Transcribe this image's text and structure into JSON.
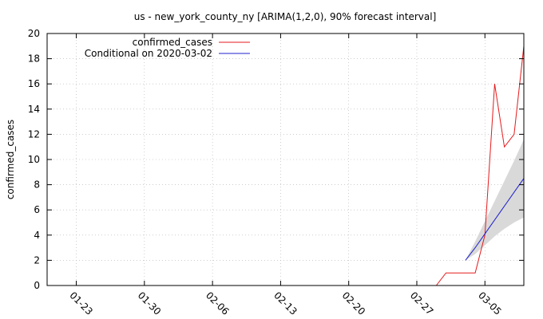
{
  "chart_data": {
    "type": "line",
    "title": "us - new_york_county_ny [ARIMA(1,2,0), 90% forecast interval]",
    "xlabel": "",
    "ylabel": "confirmed_cases",
    "x_start": "2020-01-20",
    "x_ticks": [
      "01-23",
      "01-30",
      "02-06",
      "02-13",
      "02-20",
      "02-27",
      "03-05"
    ],
    "x_tick_dates": [
      "2020-01-23",
      "2020-01-30",
      "2020-02-06",
      "2020-02-13",
      "2020-02-20",
      "2020-02-27",
      "2020-03-05"
    ],
    "x_range": [
      "2020-01-20",
      "2020-03-09"
    ],
    "ylim": [
      0,
      20
    ],
    "y_ticks": [
      0,
      2,
      4,
      6,
      8,
      10,
      12,
      14,
      16,
      18,
      20
    ],
    "grid": true,
    "legend_position": "top-left",
    "series": [
      {
        "name": "confirmed_cases",
        "color": "#e41a1c",
        "x": [
          "2020-02-29",
          "2020-03-01",
          "2020-03-02",
          "2020-03-03",
          "2020-03-04",
          "2020-03-05",
          "2020-03-06",
          "2020-03-07",
          "2020-03-08",
          "2020-03-09"
        ],
        "values": [
          0,
          1,
          1,
          1,
          1,
          4,
          16,
          11,
          12,
          19
        ]
      },
      {
        "name": "Conditional on 2020-03-02",
        "color": "#1f1fcf",
        "x": [
          "2020-03-03",
          "2020-03-04",
          "2020-03-05",
          "2020-03-06",
          "2020-03-07",
          "2020-03-08",
          "2020-03-09"
        ],
        "values": [
          2.0,
          3.0,
          4.1,
          5.2,
          6.3,
          7.4,
          8.5
        ]
      }
    ],
    "forecast_interval": {
      "color": "#d9d9d9",
      "x": [
        "2020-03-03",
        "2020-03-04",
        "2020-03-05",
        "2020-03-06",
        "2020-03-07",
        "2020-03-08",
        "2020-03-09"
      ],
      "lower": [
        2.0,
        2.5,
        3.2,
        3.9,
        4.5,
        5.0,
        5.4
      ],
      "upper": [
        2.0,
        3.5,
        5.1,
        6.7,
        8.3,
        9.9,
        11.6
      ]
    }
  }
}
